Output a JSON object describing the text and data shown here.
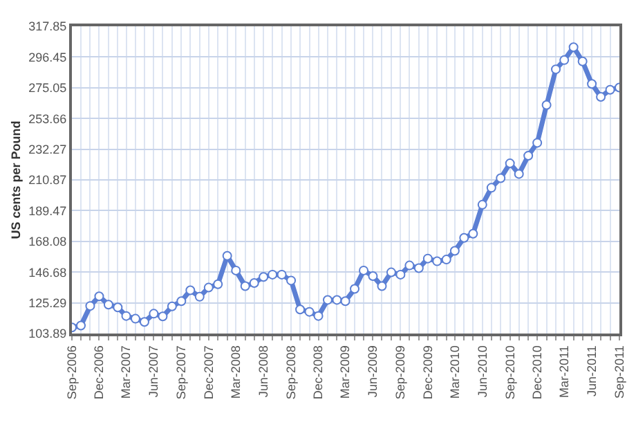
{
  "chart_data": {
    "type": "line",
    "ylabel": "US cents per Pound",
    "x": [
      "2006-09",
      "2006-10",
      "2006-11",
      "2006-12",
      "2007-01",
      "2007-02",
      "2007-03",
      "2007-04",
      "2007-05",
      "2007-06",
      "2007-07",
      "2007-08",
      "2007-09",
      "2007-10",
      "2007-11",
      "2007-12",
      "2008-01",
      "2008-02",
      "2008-03",
      "2008-04",
      "2008-05",
      "2008-06",
      "2008-07",
      "2008-08",
      "2008-09",
      "2008-10",
      "2008-11",
      "2008-12",
      "2009-01",
      "2009-02",
      "2009-03",
      "2009-04",
      "2009-05",
      "2009-06",
      "2009-07",
      "2009-08",
      "2009-09",
      "2009-10",
      "2009-11",
      "2009-12",
      "2010-01",
      "2010-02",
      "2010-03",
      "2010-04",
      "2010-05",
      "2010-06",
      "2010-07",
      "2010-08",
      "2010-09",
      "2010-10",
      "2010-11",
      "2010-12",
      "2011-01",
      "2011-02",
      "2011-03",
      "2011-04",
      "2011-05",
      "2011-06",
      "2011-07",
      "2011-08",
      "2011-09"
    ],
    "series": [
      {
        "color": "#5b7fd4",
        "values": [
          108.1,
          109.4,
          123.1,
          129.8,
          124.0,
          122.1,
          116.1,
          114.2,
          112.0,
          117.7,
          115.8,
          122.8,
          126.4,
          134.0,
          129.5,
          135.9,
          138.2,
          158.0,
          147.8,
          136.9,
          139.1,
          143.3,
          144.9,
          144.9,
          140.8,
          120.6,
          119.0,
          116.1,
          127.3,
          127.3,
          126.4,
          135.0,
          147.8,
          143.9,
          136.9,
          146.5,
          144.9,
          151.3,
          149.4,
          156.1,
          154.2,
          155.4,
          161.5,
          170.5,
          173.4,
          193.6,
          205.4,
          212.1,
          222.4,
          215.0,
          227.7,
          236.7,
          263.0,
          287.9,
          294.3,
          303.3,
          293.4,
          277.7,
          268.7,
          273.6,
          275.2
        ]
      }
    ],
    "xlim": [
      "2006-09",
      "2011-09"
    ],
    "ylim": [
      103.89,
      317.85
    ],
    "yticks": [
      103.89,
      125.29,
      146.68,
      168.08,
      189.47,
      210.87,
      232.27,
      253.66,
      275.05,
      296.45,
      317.85
    ],
    "xticks": [
      {
        "value": "2006-09",
        "label": "Sep-2006"
      },
      {
        "value": "2006-10",
        "label": null
      },
      {
        "value": "2006-11",
        "label": null
      },
      {
        "value": "2006-12",
        "label": "Dec-2006"
      },
      {
        "value": "2007-01",
        "label": null
      },
      {
        "value": "2007-02",
        "label": null
      },
      {
        "value": "2007-03",
        "label": "Mar-2007"
      },
      {
        "value": "2007-04",
        "label": null
      },
      {
        "value": "2007-05",
        "label": null
      },
      {
        "value": "2007-06",
        "label": "Jun-2007"
      },
      {
        "value": "2007-07",
        "label": null
      },
      {
        "value": "2007-08",
        "label": null
      },
      {
        "value": "2007-09",
        "label": "Sep-2007"
      },
      {
        "value": "2007-10",
        "label": null
      },
      {
        "value": "2007-11",
        "label": null
      },
      {
        "value": "2007-12",
        "label": "Dec-2007"
      },
      {
        "value": "2008-01",
        "label": null
      },
      {
        "value": "2008-02",
        "label": null
      },
      {
        "value": "2008-03",
        "label": "Mar-2008"
      },
      {
        "value": "2008-04",
        "label": null
      },
      {
        "value": "2008-05",
        "label": null
      },
      {
        "value": "2008-06",
        "label": "Jun-2008"
      },
      {
        "value": "2008-07",
        "label": null
      },
      {
        "value": "2008-08",
        "label": null
      },
      {
        "value": "2008-09",
        "label": "Sep-2008"
      },
      {
        "value": "2008-10",
        "label": null
      },
      {
        "value": "2008-11",
        "label": null
      },
      {
        "value": "2008-12",
        "label": "Dec-2008"
      },
      {
        "value": "2009-01",
        "label": null
      },
      {
        "value": "2009-02",
        "label": null
      },
      {
        "value": "2009-03",
        "label": "Mar-2009"
      },
      {
        "value": "2009-04",
        "label": null
      },
      {
        "value": "2009-05",
        "label": null
      },
      {
        "value": "2009-06",
        "label": "Jun-2009"
      },
      {
        "value": "2009-07",
        "label": null
      },
      {
        "value": "2009-08",
        "label": null
      },
      {
        "value": "2009-09",
        "label": "Sep-2009"
      },
      {
        "value": "2009-10",
        "label": null
      },
      {
        "value": "2009-11",
        "label": null
      },
      {
        "value": "2009-12",
        "label": "Dec-2009"
      },
      {
        "value": "2010-01",
        "label": null
      },
      {
        "value": "2010-02",
        "label": null
      },
      {
        "value": "2010-03",
        "label": "Mar-2010"
      },
      {
        "value": "2010-04",
        "label": null
      },
      {
        "value": "2010-05",
        "label": null
      },
      {
        "value": "2010-06",
        "label": "Jun-2010"
      },
      {
        "value": "2010-07",
        "label": null
      },
      {
        "value": "2010-08",
        "label": null
      },
      {
        "value": "2010-09",
        "label": "Sep-2010"
      },
      {
        "value": "2010-10",
        "label": null
      },
      {
        "value": "2010-11",
        "label": null
      },
      {
        "value": "2010-12",
        "label": "Dec-2010"
      },
      {
        "value": "2011-01",
        "label": null
      },
      {
        "value": "2011-02",
        "label": null
      },
      {
        "value": "2011-03",
        "label": "Mar-2011"
      },
      {
        "value": "2011-04",
        "label": null
      },
      {
        "value": "2011-05",
        "label": null
      },
      {
        "value": "2011-06",
        "label": "Jun-2011"
      },
      {
        "value": "2011-07",
        "label": null
      },
      {
        "value": "2011-08",
        "label": null
      },
      {
        "value": "2011-09",
        "label": "Sep-2011"
      }
    ],
    "grid": true,
    "legend": false,
    "marker": "circle",
    "line_style": "solid"
  }
}
